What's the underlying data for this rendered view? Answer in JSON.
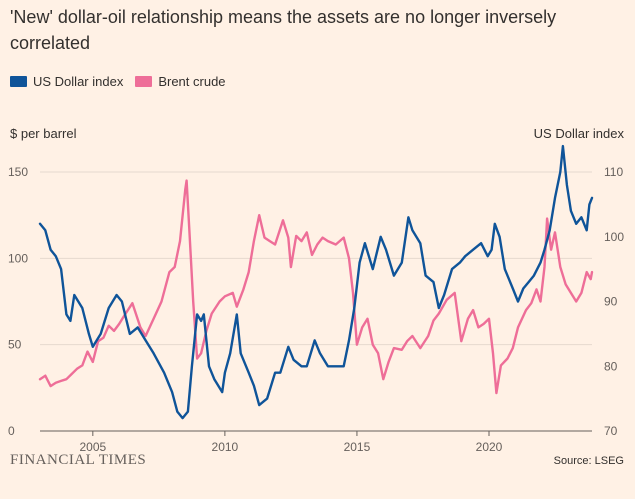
{
  "title": "'New' dollar-oil relationship means the assets are no longer inversely correlated",
  "legend": [
    {
      "label": "US Dollar index",
      "color": "#0f5499"
    },
    {
      "label": "Brent crude",
      "color": "#ee6e98"
    }
  ],
  "footer": {
    "brand": "FINANCIAL TIMES",
    "source": "Source: LSEG"
  },
  "chart_data": {
    "type": "line",
    "title": "'New' dollar-oil relationship means the assets are no longer inversely correlated",
    "left_axis": {
      "label": "$ per barrel",
      "ticks": [
        0,
        50,
        100,
        150
      ],
      "range": [
        0,
        150
      ]
    },
    "right_axis": {
      "label": "US Dollar index",
      "ticks": [
        70,
        80,
        90,
        100,
        110
      ],
      "range": [
        70,
        110
      ]
    },
    "x_axis": {
      "ticks": [
        2005,
        2010,
        2015,
        2020
      ],
      "range": [
        2003.0,
        2023.9
      ]
    },
    "gridlines": true,
    "series": [
      {
        "name": "Brent crude",
        "axis": "left",
        "color": "#ee6e98",
        "points": [
          [
            2003.0,
            30
          ],
          [
            2003.2,
            32
          ],
          [
            2003.4,
            26
          ],
          [
            2003.6,
            28
          ],
          [
            2003.8,
            29
          ],
          [
            2004.0,
            30
          ],
          [
            2004.2,
            33
          ],
          [
            2004.4,
            36
          ],
          [
            2004.6,
            38
          ],
          [
            2004.8,
            46
          ],
          [
            2005.0,
            40
          ],
          [
            2005.2,
            52
          ],
          [
            2005.4,
            54
          ],
          [
            2005.6,
            61
          ],
          [
            2005.8,
            58
          ],
          [
            2006.0,
            62
          ],
          [
            2006.2,
            67
          ],
          [
            2006.5,
            74
          ],
          [
            2006.8,
            60
          ],
          [
            2007.0,
            55
          ],
          [
            2007.3,
            65
          ],
          [
            2007.6,
            75
          ],
          [
            2007.9,
            92
          ],
          [
            2008.1,
            95
          ],
          [
            2008.3,
            110
          ],
          [
            2008.5,
            140
          ],
          [
            2008.55,
            145
          ],
          [
            2008.65,
            118
          ],
          [
            2008.8,
            75
          ],
          [
            2008.95,
            42
          ],
          [
            2009.1,
            45
          ],
          [
            2009.3,
            58
          ],
          [
            2009.5,
            68
          ],
          [
            2009.8,
            75
          ],
          [
            2010.0,
            78
          ],
          [
            2010.3,
            80
          ],
          [
            2010.45,
            72
          ],
          [
            2010.7,
            82
          ],
          [
            2010.9,
            92
          ],
          [
            2011.1,
            110
          ],
          [
            2011.3,
            125
          ],
          [
            2011.5,
            112
          ],
          [
            2011.7,
            110
          ],
          [
            2011.9,
            108
          ],
          [
            2012.2,
            122
          ],
          [
            2012.4,
            112
          ],
          [
            2012.5,
            95
          ],
          [
            2012.7,
            113
          ],
          [
            2012.9,
            110
          ],
          [
            2013.1,
            115
          ],
          [
            2013.3,
            102
          ],
          [
            2013.5,
            108
          ],
          [
            2013.7,
            112
          ],
          [
            2013.9,
            110
          ],
          [
            2014.2,
            108
          ],
          [
            2014.5,
            112
          ],
          [
            2014.7,
            100
          ],
          [
            2014.85,
            80
          ],
          [
            2015.0,
            50
          ],
          [
            2015.2,
            60
          ],
          [
            2015.4,
            65
          ],
          [
            2015.6,
            50
          ],
          [
            2015.8,
            45
          ],
          [
            2016.0,
            30
          ],
          [
            2016.2,
            40
          ],
          [
            2016.4,
            48
          ],
          [
            2016.7,
            47
          ],
          [
            2016.9,
            52
          ],
          [
            2017.1,
            55
          ],
          [
            2017.4,
            48
          ],
          [
            2017.7,
            55
          ],
          [
            2017.9,
            64
          ],
          [
            2018.1,
            68
          ],
          [
            2018.4,
            76
          ],
          [
            2018.7,
            80
          ],
          [
            2018.95,
            52
          ],
          [
            2019.2,
            65
          ],
          [
            2019.4,
            70
          ],
          [
            2019.6,
            60
          ],
          [
            2019.8,
            62
          ],
          [
            2020.0,
            65
          ],
          [
            2020.15,
            45
          ],
          [
            2020.28,
            22
          ],
          [
            2020.45,
            38
          ],
          [
            2020.7,
            42
          ],
          [
            2020.9,
            48
          ],
          [
            2021.1,
            60
          ],
          [
            2021.4,
            70
          ],
          [
            2021.6,
            74
          ],
          [
            2021.8,
            82
          ],
          [
            2021.95,
            75
          ],
          [
            2022.1,
            95
          ],
          [
            2022.2,
            123
          ],
          [
            2022.35,
            105
          ],
          [
            2022.5,
            115
          ],
          [
            2022.7,
            95
          ],
          [
            2022.9,
            85
          ],
          [
            2023.1,
            80
          ],
          [
            2023.3,
            75
          ],
          [
            2023.5,
            80
          ],
          [
            2023.7,
            92
          ],
          [
            2023.85,
            88
          ],
          [
            2023.9,
            92
          ]
        ]
      },
      {
        "name": "US Dollar index",
        "axis": "right",
        "color": "#0f5499",
        "points": [
          [
            2003.0,
            102
          ],
          [
            2003.2,
            101
          ],
          [
            2003.4,
            98
          ],
          [
            2003.6,
            97
          ],
          [
            2003.8,
            95
          ],
          [
            2004.0,
            88
          ],
          [
            2004.15,
            87
          ],
          [
            2004.3,
            91
          ],
          [
            2004.6,
            89
          ],
          [
            2004.85,
            85
          ],
          [
            2005.0,
            83
          ],
          [
            2005.3,
            85
          ],
          [
            2005.6,
            89
          ],
          [
            2005.9,
            91
          ],
          [
            2006.1,
            90
          ],
          [
            2006.4,
            85
          ],
          [
            2006.7,
            86
          ],
          [
            2007.0,
            84
          ],
          [
            2007.3,
            82
          ],
          [
            2007.7,
            79
          ],
          [
            2008.0,
            76
          ],
          [
            2008.2,
            73
          ],
          [
            2008.4,
            72
          ],
          [
            2008.6,
            73
          ],
          [
            2008.75,
            80
          ],
          [
            2008.95,
            88
          ],
          [
            2009.1,
            87
          ],
          [
            2009.2,
            88
          ],
          [
            2009.4,
            80
          ],
          [
            2009.6,
            78
          ],
          [
            2009.9,
            76
          ],
          [
            2010.0,
            79
          ],
          [
            2010.2,
            82
          ],
          [
            2010.45,
            88
          ],
          [
            2010.6,
            82
          ],
          [
            2010.9,
            79
          ],
          [
            2011.1,
            77
          ],
          [
            2011.3,
            74
          ],
          [
            2011.6,
            75
          ],
          [
            2011.9,
            79
          ],
          [
            2012.1,
            79
          ],
          [
            2012.4,
            83
          ],
          [
            2012.6,
            81
          ],
          [
            2012.9,
            80
          ],
          [
            2013.1,
            80
          ],
          [
            2013.4,
            84
          ],
          [
            2013.6,
            82
          ],
          [
            2013.9,
            80
          ],
          [
            2014.2,
            80
          ],
          [
            2014.5,
            80
          ],
          [
            2014.7,
            84
          ],
          [
            2014.9,
            89
          ],
          [
            2015.1,
            96
          ],
          [
            2015.3,
            99
          ],
          [
            2015.6,
            95
          ],
          [
            2015.9,
            100
          ],
          [
            2016.1,
            98
          ],
          [
            2016.4,
            94
          ],
          [
            2016.7,
            96
          ],
          [
            2016.95,
            103
          ],
          [
            2017.1,
            101
          ],
          [
            2017.4,
            99
          ],
          [
            2017.6,
            94
          ],
          [
            2017.9,
            93
          ],
          [
            2018.1,
            89
          ],
          [
            2018.3,
            91
          ],
          [
            2018.6,
            95
          ],
          [
            2018.9,
            96
          ],
          [
            2019.1,
            97
          ],
          [
            2019.4,
            98
          ],
          [
            2019.7,
            99
          ],
          [
            2019.95,
            97
          ],
          [
            2020.1,
            98
          ],
          [
            2020.22,
            102
          ],
          [
            2020.4,
            100
          ],
          [
            2020.6,
            95
          ],
          [
            2020.9,
            92
          ],
          [
            2021.1,
            90
          ],
          [
            2021.3,
            92
          ],
          [
            2021.5,
            93
          ],
          [
            2021.7,
            94
          ],
          [
            2021.95,
            96
          ],
          [
            2022.1,
            98
          ],
          [
            2022.3,
            101
          ],
          [
            2022.5,
            106
          ],
          [
            2022.7,
            110
          ],
          [
            2022.8,
            114
          ],
          [
            2022.95,
            108
          ],
          [
            2023.1,
            104
          ],
          [
            2023.3,
            102
          ],
          [
            2023.5,
            103
          ],
          [
            2023.7,
            101
          ],
          [
            2023.8,
            105
          ],
          [
            2023.9,
            106
          ]
        ]
      }
    ]
  }
}
